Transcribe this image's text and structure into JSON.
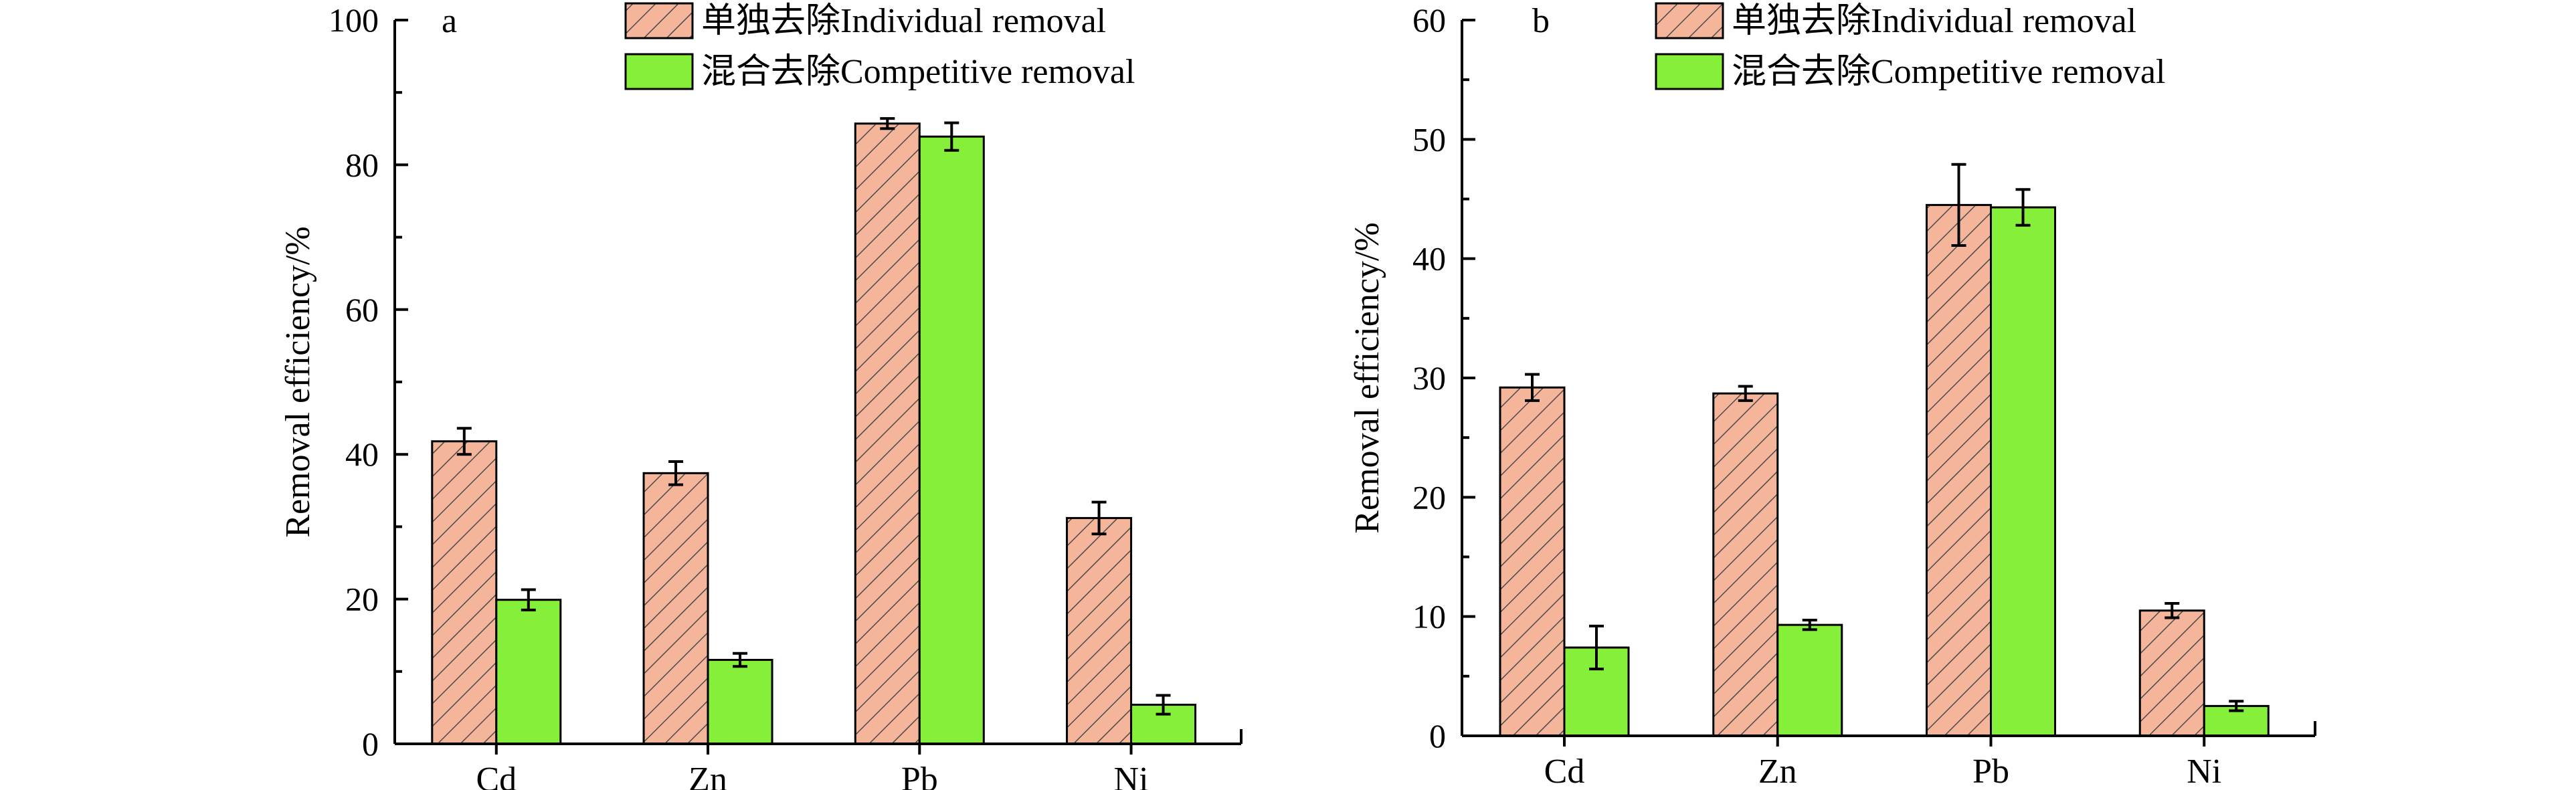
{
  "colors": {
    "individual_fill": "#f4b59a",
    "individual_hatch": "#4a4a4a",
    "competitive_fill": "#86ef3a"
  },
  "legend": {
    "individual": "单独去除Individual removal",
    "competitive": "混合去除Competitive removal"
  },
  "chart_data": [
    {
      "type": "bar",
      "panel": "a",
      "categories": [
        "Cd",
        "Zn",
        "Pb",
        "Ni"
      ],
      "series": [
        {
          "name": "单独去除Individual removal",
          "values": [
            41.8,
            37.4,
            85.7,
            31.2
          ],
          "errors": [
            1.8,
            1.6,
            0.7,
            2.2
          ]
        },
        {
          "name": "混合去除Competitive removal",
          "values": [
            19.9,
            11.6,
            83.9,
            5.4
          ],
          "errors": [
            1.4,
            0.9,
            1.9,
            1.3
          ]
        }
      ],
      "xlabel": "",
      "ylabel": "Removal efficiency/%",
      "ylim": [
        0,
        100
      ],
      "yticks": [
        0,
        20,
        40,
        60,
        80,
        100
      ],
      "ytick_labels": [
        "0",
        "20",
        "40",
        "60",
        "80",
        "100"
      ],
      "grid": false,
      "legend_position": "top"
    },
    {
      "type": "bar",
      "panel": "b",
      "categories": [
        "Cd",
        "Zn",
        "Pb",
        "Ni"
      ],
      "series": [
        {
          "name": "单独去除Individual removal",
          "values": [
            29.2,
            28.7,
            44.5,
            10.5
          ],
          "errors": [
            1.1,
            0.6,
            3.4,
            0.6
          ]
        },
        {
          "name": "混合去除Competitive removal",
          "values": [
            7.4,
            9.3,
            44.3,
            2.5
          ],
          "errors": [
            1.8,
            0.4,
            1.5,
            0.4
          ]
        }
      ],
      "xlabel": "",
      "ylabel": "Removal efficiency/%",
      "ylim": [
        0,
        60
      ],
      "yticks": [
        0,
        10,
        20,
        30,
        40,
        50,
        60
      ],
      "ytick_labels": [
        "0",
        "10",
        "20",
        "30",
        "40",
        "50",
        "60"
      ],
      "grid": false,
      "legend_position": "top"
    }
  ]
}
